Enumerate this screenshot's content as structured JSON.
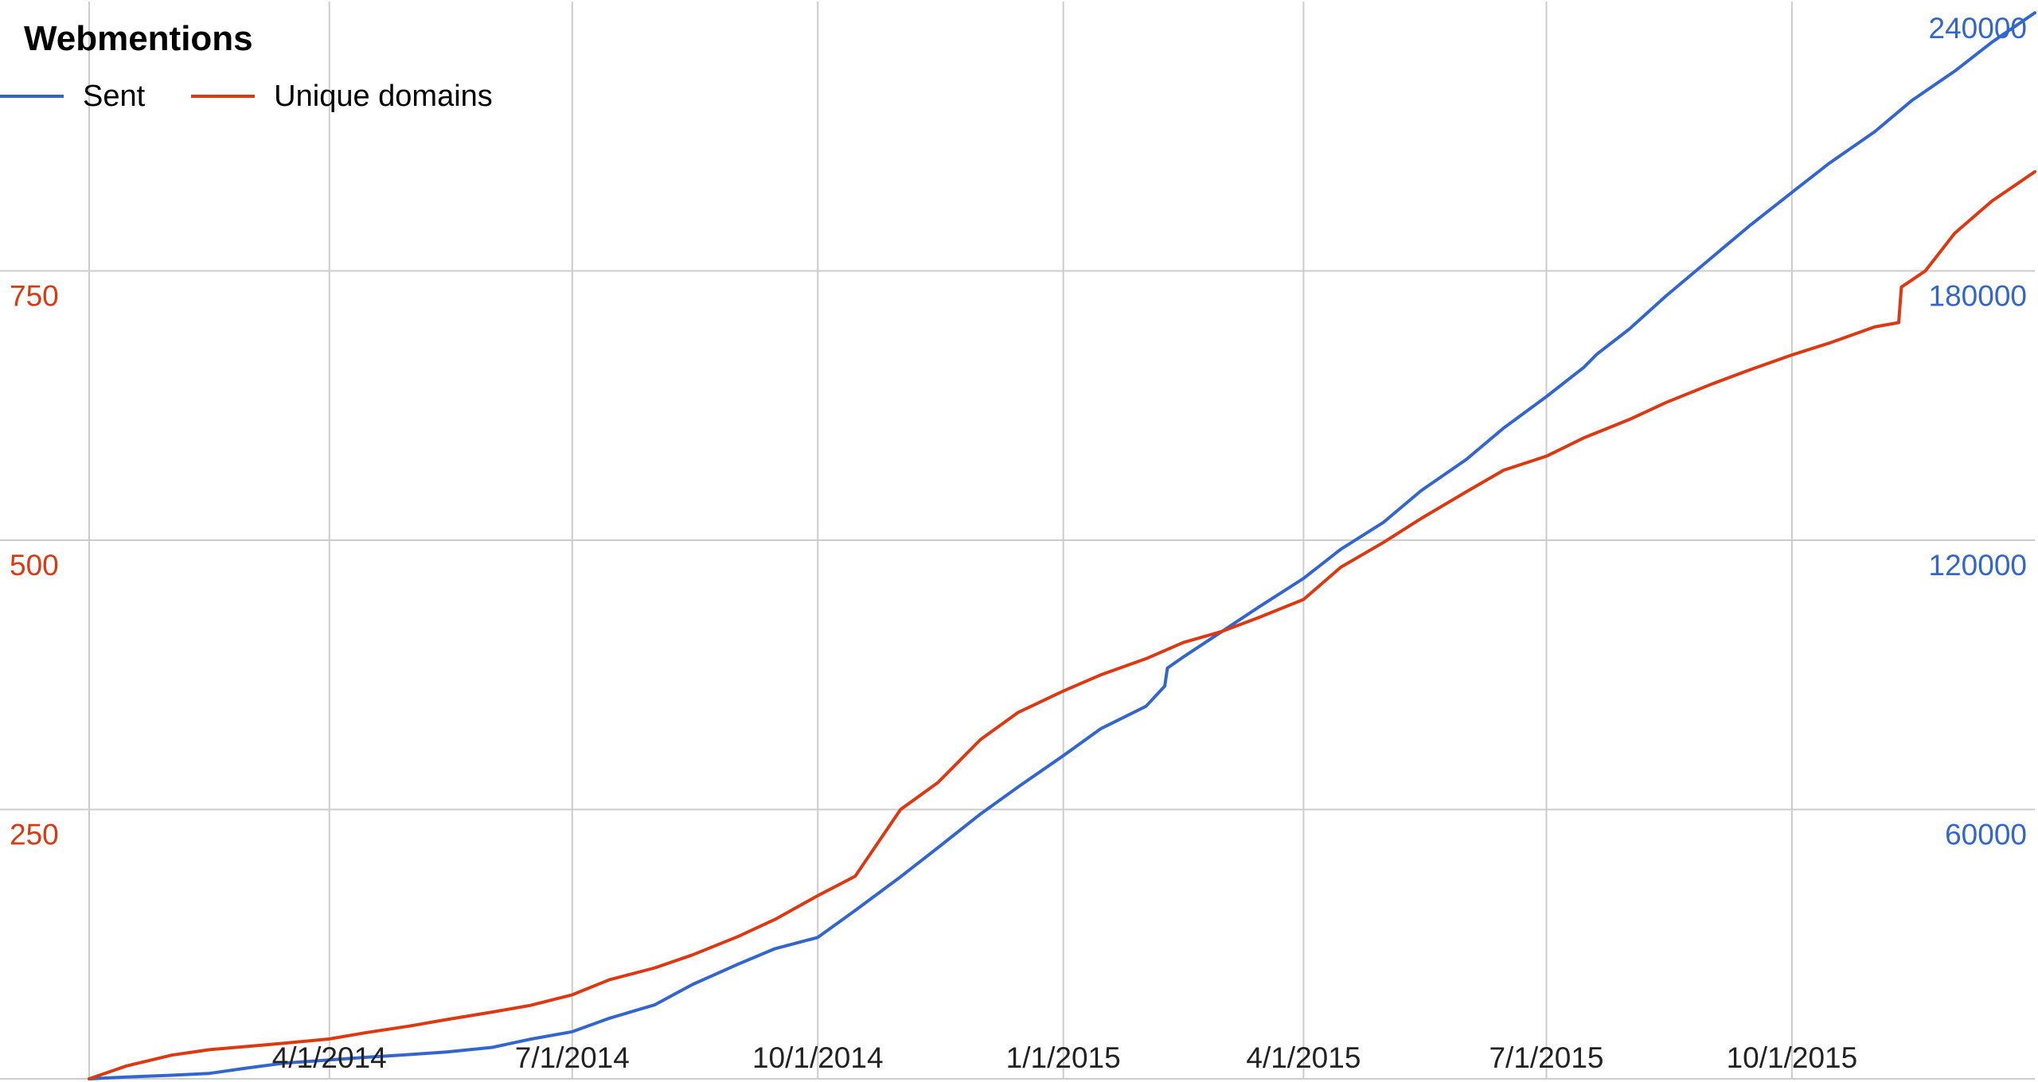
{
  "chart_data": {
    "type": "line",
    "title": "Webmentions",
    "x_ticks": [
      "4/1/2014",
      "7/1/2014",
      "10/1/2014",
      "1/1/2015",
      "4/1/2015",
      "7/1/2015",
      "10/1/2015"
    ],
    "xlim": [
      "2014-01-01",
      "2015-12-31"
    ],
    "y_left": {
      "lim": [
        0,
        1000
      ],
      "ticks": [
        250,
        500,
        750
      ],
      "color": "#dc3912",
      "series": "Unique domains"
    },
    "y_right": {
      "lim": [
        0,
        240000
      ],
      "ticks": [
        60000,
        120000,
        180000,
        240000
      ],
      "color": "#3366cc",
      "series": "Sent"
    },
    "grid": true,
    "legend": "top-left",
    "series": [
      {
        "name": "Sent",
        "axis": "right",
        "color": "#3366cc",
        "points": [
          [
            "2014-01-01",
            0
          ],
          [
            "2014-01-15",
            400
          ],
          [
            "2014-02-01",
            800
          ],
          [
            "2014-02-15",
            1200
          ],
          [
            "2014-03-01",
            2400
          ],
          [
            "2014-03-15",
            3500
          ],
          [
            "2014-04-01",
            4200
          ],
          [
            "2014-04-15",
            4800
          ],
          [
            "2014-05-01",
            5400
          ],
          [
            "2014-05-15",
            6000
          ],
          [
            "2014-06-01",
            7000
          ],
          [
            "2014-06-15",
            8800
          ],
          [
            "2014-07-01",
            10500
          ],
          [
            "2014-07-15",
            13500
          ],
          [
            "2014-08-01",
            16500
          ],
          [
            "2014-08-15",
            21000
          ],
          [
            "2014-09-01",
            25500
          ],
          [
            "2014-09-15",
            29000
          ],
          [
            "2014-10-01",
            31500
          ],
          [
            "2014-10-15",
            37500
          ],
          [
            "2014-11-01",
            45000
          ],
          [
            "2014-11-15",
            51500
          ],
          [
            "2014-12-01",
            59000
          ],
          [
            "2014-12-15",
            65000
          ],
          [
            "2015-01-01",
            72000
          ],
          [
            "2015-01-15",
            78000
          ],
          [
            "2015-02-01",
            83000
          ],
          [
            "2015-02-08",
            87500
          ],
          [
            "2015-02-09",
            91500
          ],
          [
            "2015-02-15",
            94000
          ],
          [
            "2015-03-01",
            99500
          ],
          [
            "2015-03-15",
            105000
          ],
          [
            "2015-04-01",
            111500
          ],
          [
            "2015-04-15",
            118000
          ],
          [
            "2015-05-01",
            124000
          ],
          [
            "2015-05-15",
            131000
          ],
          [
            "2015-06-01",
            138000
          ],
          [
            "2015-06-15",
            145000
          ],
          [
            "2015-07-01",
            152000
          ],
          [
            "2015-07-15",
            158500
          ],
          [
            "2015-07-20",
            161500
          ],
          [
            "2015-08-01",
            167000
          ],
          [
            "2015-08-15",
            174500
          ],
          [
            "2015-09-01",
            183000
          ],
          [
            "2015-09-15",
            190000
          ],
          [
            "2015-10-01",
            197500
          ],
          [
            "2015-10-15",
            204000
          ],
          [
            "2015-11-01",
            211000
          ],
          [
            "2015-11-15",
            218000
          ],
          [
            "2015-12-01",
            224500
          ],
          [
            "2015-12-15",
            231000
          ],
          [
            "2015-12-31",
            237500
          ]
        ]
      },
      {
        "name": "Unique domains",
        "axis": "left",
        "color": "#dc3912",
        "points": [
          [
            "2014-01-01",
            0
          ],
          [
            "2014-01-15",
            12
          ],
          [
            "2014-02-01",
            22
          ],
          [
            "2014-02-15",
            27
          ],
          [
            "2014-03-01",
            30
          ],
          [
            "2014-03-15",
            33
          ],
          [
            "2014-04-01",
            37
          ],
          [
            "2014-04-15",
            43
          ],
          [
            "2014-05-01",
            49
          ],
          [
            "2014-05-15",
            55
          ],
          [
            "2014-06-01",
            62
          ],
          [
            "2014-06-15",
            68
          ],
          [
            "2014-07-01",
            78
          ],
          [
            "2014-07-15",
            92
          ],
          [
            "2014-08-01",
            103
          ],
          [
            "2014-08-15",
            115
          ],
          [
            "2014-09-01",
            132
          ],
          [
            "2014-09-15",
            148
          ],
          [
            "2014-10-01",
            170
          ],
          [
            "2014-10-15",
            188
          ],
          [
            "2014-11-01",
            250
          ],
          [
            "2014-11-15",
            275
          ],
          [
            "2014-12-01",
            315
          ],
          [
            "2014-12-15",
            340
          ],
          [
            "2015-01-01",
            360
          ],
          [
            "2015-01-15",
            375
          ],
          [
            "2015-02-01",
            390
          ],
          [
            "2015-02-15",
            405
          ],
          [
            "2015-03-01",
            415
          ],
          [
            "2015-03-15",
            428
          ],
          [
            "2015-04-01",
            445
          ],
          [
            "2015-04-15",
            475
          ],
          [
            "2015-05-01",
            498
          ],
          [
            "2015-05-15",
            520
          ],
          [
            "2015-06-01",
            545
          ],
          [
            "2015-06-15",
            565
          ],
          [
            "2015-07-01",
            578
          ],
          [
            "2015-07-15",
            595
          ],
          [
            "2015-08-01",
            612
          ],
          [
            "2015-08-15",
            628
          ],
          [
            "2015-09-01",
            645
          ],
          [
            "2015-09-15",
            658
          ],
          [
            "2015-10-01",
            672
          ],
          [
            "2015-10-15",
            683
          ],
          [
            "2015-11-01",
            698
          ],
          [
            "2015-11-10",
            702
          ],
          [
            "2015-11-11",
            735
          ],
          [
            "2015-11-20",
            750
          ],
          [
            "2015-12-01",
            785
          ],
          [
            "2015-12-15",
            815
          ],
          [
            "2015-12-31",
            842
          ]
        ]
      }
    ]
  }
}
